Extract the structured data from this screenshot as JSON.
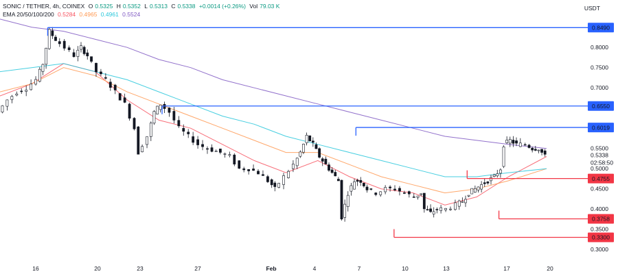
{
  "header": {
    "symbol": "SONIC / TETHER, 4h, COINEX",
    "open_label": "O",
    "open": "0.5325",
    "high_label": "H",
    "high": "0.5352",
    "low_label": "L",
    "low": "0.5313",
    "close_label": "C",
    "close": "0.5338",
    "change": "+0.0014 (+0.26%)",
    "vol_label": "Vol",
    "vol": "79.03 K",
    "ma_label": "EMA 20/50/100/200",
    "ma_values": [
      "0.5284",
      "0.4965",
      "0.4961",
      "0.5524"
    ]
  },
  "currency": "USDT",
  "colors": {
    "up": "#131722",
    "down": "#131722",
    "ema20": "#f7525f",
    "ema50": "#ff9850",
    "ema100": "#26c6da",
    "ema200": "#7e57c2",
    "resistance": "#2962ff",
    "support": "#f23645",
    "text": "#131722"
  },
  "chart_data": {
    "type": "candlestick",
    "timeframe": "4h",
    "y_range": [
      0.28,
      0.88
    ],
    "y_ticks": [
      0.3,
      0.35,
      0.4,
      0.45,
      0.5,
      0.55,
      0.7,
      0.75,
      0.8
    ],
    "y_tick_labels": [
      "0.3000",
      "0.3500",
      "0.4000",
      "0.4500",
      "0.5000",
      "0.5500",
      "0.7000",
      "0.7500",
      "0.8000"
    ],
    "x_labels": [
      "16",
      "20",
      "23",
      "27",
      "Feb",
      "4",
      "7",
      "10",
      "13",
      "17",
      "20"
    ],
    "price_tag": {
      "value": 0.5338,
      "label": "0.5338",
      "countdown": "02:58:50"
    },
    "resistance_levels": [
      {
        "value": 0.849,
        "label": "0.8490",
        "from": "16"
      },
      {
        "value": 0.655,
        "label": "0.6550",
        "from": "22"
      },
      {
        "value": 0.6019,
        "label": "0.6019",
        "from": "31"
      }
    ],
    "support_levels": [
      {
        "value": 0.4755,
        "label": "0.4755",
        "from": "5"
      },
      {
        "value": 0.3758,
        "label": "0.3758",
        "from": "8"
      },
      {
        "value": 0.33,
        "label": "0.3300",
        "from": "3"
      }
    ],
    "price_path": [
      [
        0,
        0.64
      ],
      [
        3,
        0.67
      ],
      [
        6,
        0.69
      ],
      [
        9,
        0.7
      ],
      [
        12,
        0.72
      ],
      [
        14,
        0.76
      ],
      [
        16,
        0.84
      ],
      [
        18,
        0.82
      ],
      [
        21,
        0.8
      ],
      [
        24,
        0.78
      ],
      [
        26,
        0.8
      ],
      [
        28,
        0.78
      ],
      [
        31,
        0.74
      ],
      [
        34,
        0.72
      ],
      [
        37,
        0.69
      ],
      [
        40,
        0.66
      ],
      [
        43,
        0.6
      ],
      [
        44,
        0.54
      ],
      [
        47,
        0.58
      ],
      [
        49,
        0.64
      ],
      [
        51,
        0.66
      ],
      [
        54,
        0.64
      ],
      [
        57,
        0.6
      ],
      [
        60,
        0.58
      ],
      [
        63,
        0.56
      ],
      [
        66,
        0.55
      ],
      [
        70,
        0.54
      ],
      [
        73,
        0.53
      ],
      [
        76,
        0.5
      ],
      [
        79,
        0.5
      ],
      [
        82,
        0.49
      ],
      [
        85,
        0.47
      ],
      [
        87,
        0.45
      ],
      [
        90,
        0.48
      ],
      [
        93,
        0.51
      ],
      [
        95,
        0.54
      ],
      [
        97,
        0.58
      ],
      [
        99,
        0.56
      ],
      [
        101,
        0.53
      ],
      [
        103,
        0.51
      ],
      [
        105,
        0.49
      ],
      [
        107,
        0.47
      ],
      [
        108,
        0.38
      ],
      [
        110,
        0.44
      ],
      [
        112,
        0.47
      ],
      [
        114,
        0.47
      ],
      [
        116,
        0.45
      ],
      [
        119,
        0.44
      ],
      [
        122,
        0.45
      ],
      [
        125,
        0.45
      ],
      [
        128,
        0.44
      ],
      [
        131,
        0.43
      ],
      [
        133,
        0.44
      ],
      [
        134,
        0.4
      ],
      [
        136,
        0.39
      ],
      [
        138,
        0.4
      ],
      [
        141,
        0.4
      ],
      [
        144,
        0.41
      ],
      [
        146,
        0.42
      ],
      [
        148,
        0.44
      ],
      [
        150,
        0.45
      ],
      [
        152,
        0.46
      ],
      [
        154,
        0.47
      ],
      [
        156,
        0.48
      ],
      [
        158,
        0.5
      ],
      [
        159,
        0.56
      ],
      [
        161,
        0.57
      ],
      [
        163,
        0.56
      ],
      [
        166,
        0.56
      ],
      [
        168,
        0.55
      ],
      [
        170,
        0.55
      ],
      [
        172,
        0.53
      ]
    ],
    "ema_paths": [
      {
        "name": "EMA 20",
        "points": [
          [
            0,
            0.68
          ],
          [
            10,
            0.71
          ],
          [
            20,
            0.76
          ],
          [
            30,
            0.74
          ],
          [
            40,
            0.67
          ],
          [
            50,
            0.62
          ],
          [
            60,
            0.6
          ],
          [
            70,
            0.56
          ],
          [
            80,
            0.52
          ],
          [
            90,
            0.49
          ],
          [
            100,
            0.52
          ],
          [
            110,
            0.48
          ],
          [
            120,
            0.45
          ],
          [
            130,
            0.44
          ],
          [
            140,
            0.41
          ],
          [
            150,
            0.43
          ],
          [
            160,
            0.48
          ],
          [
            172,
            0.53
          ]
        ]
      },
      {
        "name": "EMA 50",
        "points": [
          [
            0,
            0.69
          ],
          [
            10,
            0.71
          ],
          [
            20,
            0.75
          ],
          [
            30,
            0.73
          ],
          [
            40,
            0.69
          ],
          [
            50,
            0.66
          ],
          [
            60,
            0.63
          ],
          [
            70,
            0.6
          ],
          [
            80,
            0.57
          ],
          [
            90,
            0.54
          ],
          [
            100,
            0.54
          ],
          [
            110,
            0.51
          ],
          [
            120,
            0.48
          ],
          [
            130,
            0.46
          ],
          [
            140,
            0.44
          ],
          [
            150,
            0.45
          ],
          [
            160,
            0.47
          ],
          [
            172,
            0.5
          ]
        ]
      },
      {
        "name": "EMA 100",
        "points": [
          [
            0,
            0.74
          ],
          [
            10,
            0.75
          ],
          [
            20,
            0.76
          ],
          [
            30,
            0.74
          ],
          [
            40,
            0.72
          ],
          [
            50,
            0.69
          ],
          [
            60,
            0.66
          ],
          [
            70,
            0.63
          ],
          [
            80,
            0.61
          ],
          [
            90,
            0.58
          ],
          [
            100,
            0.56
          ],
          [
            110,
            0.54
          ],
          [
            120,
            0.52
          ],
          [
            130,
            0.5
          ],
          [
            140,
            0.48
          ],
          [
            150,
            0.48
          ],
          [
            160,
            0.49
          ],
          [
            172,
            0.5
          ]
        ]
      },
      {
        "name": "EMA 200",
        "points": [
          [
            0,
            0.87
          ],
          [
            10,
            0.85
          ],
          [
            20,
            0.84
          ],
          [
            30,
            0.82
          ],
          [
            40,
            0.8
          ],
          [
            50,
            0.77
          ],
          [
            60,
            0.75
          ],
          [
            70,
            0.72
          ],
          [
            80,
            0.7
          ],
          [
            90,
            0.68
          ],
          [
            100,
            0.66
          ],
          [
            110,
            0.64
          ],
          [
            120,
            0.62
          ],
          [
            130,
            0.6
          ],
          [
            140,
            0.58
          ],
          [
            150,
            0.57
          ],
          [
            160,
            0.56
          ],
          [
            172,
            0.55
          ]
        ]
      }
    ]
  }
}
